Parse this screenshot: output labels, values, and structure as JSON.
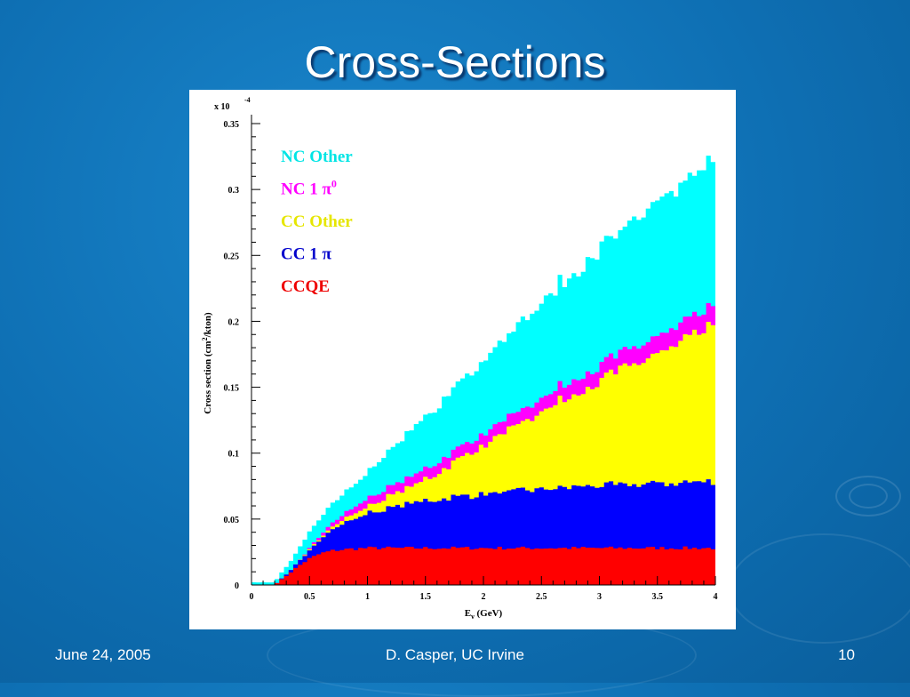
{
  "slide": {
    "title": "Cross-Sections",
    "footer_left": "June 24, 2005",
    "footer_center": "D. Casper, UC Irvine",
    "footer_right": "10"
  },
  "chart_data": {
    "type": "area",
    "stacked": true,
    "histogram": true,
    "xlabel_main": "E",
    "xlabel_sub": "ν",
    "xlabel_rest": " (GeV)",
    "ylabel_main": "Cross section (cm",
    "ylabel_sup": "2",
    "ylabel_rest": "/kton)",
    "y_multiplier_text": "x 10",
    "y_multiplier_exp": "-4",
    "xlim": [
      0,
      4
    ],
    "ylim": [
      0,
      0.35
    ],
    "xticks": [
      "0",
      "0.5",
      "1",
      "1.5",
      "2",
      "2.5",
      "3",
      "3.5",
      "4"
    ],
    "yticks": [
      "0",
      "0.05",
      "0.1",
      "0.15",
      "0.2",
      "0.25",
      "0.3",
      "0.35"
    ],
    "legend_position": "top-left",
    "legend": [
      {
        "label": "NC Other",
        "color": "#00e5e5"
      },
      {
        "label": "NC 1 π",
        "sup": "0",
        "color": "#ff00ff"
      },
      {
        "label": "CC Other",
        "color": "#e6e600"
      },
      {
        "label": "CC 1 π",
        "color": "#0000cc"
      },
      {
        "label": "CCQE",
        "color": "#ee0000"
      }
    ],
    "series": [
      {
        "name": "CCQE",
        "color": "#ff0000",
        "x": [
          0.2,
          0.3,
          0.4,
          0.5,
          0.6,
          0.7,
          0.8,
          1.0,
          1.5,
          2.0,
          2.5,
          3.0,
          3.5,
          4.0
        ],
        "values": [
          0.0,
          0.007,
          0.014,
          0.02,
          0.024,
          0.026,
          0.027,
          0.028,
          0.028,
          0.028,
          0.028,
          0.028,
          0.028,
          0.028
        ]
      },
      {
        "name": "CC 1 π",
        "color": "#0000ff",
        "x": [
          0.2,
          0.3,
          0.4,
          0.5,
          0.6,
          0.7,
          0.8,
          1.0,
          1.5,
          2.0,
          2.5,
          3.0,
          3.5,
          4.0
        ],
        "values": [
          0.0,
          0.001,
          0.003,
          0.006,
          0.011,
          0.016,
          0.02,
          0.026,
          0.036,
          0.041,
          0.045,
          0.047,
          0.049,
          0.051
        ]
      },
      {
        "name": "CC Other",
        "color": "#ffff00",
        "x": [
          0.2,
          0.3,
          0.4,
          0.5,
          0.6,
          0.7,
          0.8,
          1.0,
          1.5,
          2.0,
          2.5,
          3.0,
          3.5,
          4.0
        ],
        "values": [
          0.0,
          0.0,
          0.0,
          0.001,
          0.001,
          0.002,
          0.003,
          0.005,
          0.016,
          0.037,
          0.059,
          0.079,
          0.098,
          0.117
        ]
      },
      {
        "name": "NC 1 π0",
        "color": "#ff00ff",
        "x": [
          0.2,
          0.3,
          0.4,
          0.5,
          0.6,
          0.7,
          0.8,
          1.0,
          1.5,
          2.0,
          2.5,
          3.0,
          3.5,
          4.0
        ],
        "values": [
          0.0,
          0.0,
          0.0,
          0.001,
          0.002,
          0.003,
          0.004,
          0.006,
          0.008,
          0.009,
          0.01,
          0.012,
          0.013,
          0.014
        ]
      },
      {
        "name": "NC Other",
        "color": "#00ffff",
        "x": [
          0.2,
          0.3,
          0.4,
          0.5,
          0.6,
          0.7,
          0.8,
          1.0,
          1.5,
          2.0,
          2.5,
          3.0,
          3.5,
          4.0
        ],
        "values": [
          0.002,
          0.006,
          0.009,
          0.012,
          0.014,
          0.015,
          0.016,
          0.02,
          0.039,
          0.057,
          0.072,
          0.088,
          0.1,
          0.11
        ]
      }
    ]
  }
}
